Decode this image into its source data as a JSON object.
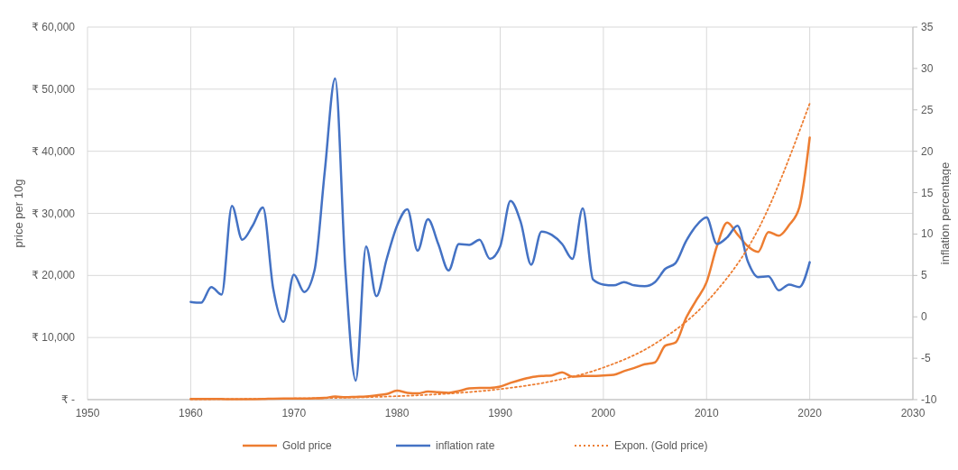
{
  "chart_data": {
    "type": "line",
    "ylabel": "price per 10g",
    "y2label": "inflation percentage",
    "x": [
      1960,
      1961,
      1962,
      1963,
      1964,
      1965,
      1966,
      1967,
      1968,
      1969,
      1970,
      1971,
      1972,
      1973,
      1974,
      1975,
      1976,
      1977,
      1978,
      1979,
      1980,
      1981,
      1982,
      1983,
      1984,
      1985,
      1986,
      1987,
      1988,
      1989,
      1990,
      1991,
      1992,
      1993,
      1994,
      1995,
      1996,
      1997,
      1998,
      1999,
      2000,
      2001,
      2002,
      2003,
      2004,
      2005,
      2006,
      2007,
      2008,
      2009,
      2010,
      2011,
      2012,
      2013,
      2014,
      2015,
      2016,
      2017,
      2018,
      2019,
      2020
    ],
    "series": [
      {
        "name": "Gold price",
        "color": "#ed7d31",
        "values": [
          110,
          120,
          120,
          100,
          60,
          70,
          80,
          100,
          160,
          180,
          180,
          190,
          200,
          280,
          500,
          400,
          450,
          500,
          700,
          900,
          1450,
          1100,
          1000,
          1300,
          1200,
          1100,
          1400,
          1800,
          1900,
          1900,
          2100,
          2700,
          3200,
          3600,
          3800,
          3900,
          4400,
          3700,
          3800,
          3800,
          3900,
          4000,
          4600,
          5100,
          5700,
          6000,
          8700,
          9200,
          13100,
          16000,
          18900,
          24700,
          28500,
          26600,
          24700,
          23800,
          27000,
          26400,
          28100,
          31000,
          42200
        ]
      },
      {
        "name": "inflation rate",
        "color": "#4472c4",
        "axis": "y2",
        "values": [
          1.8,
          1.7,
          3.6,
          2.7,
          13.4,
          9.3,
          11.0,
          13.2,
          3.4,
          -0.6,
          5.1,
          3.0,
          5.6,
          17.6,
          28.8,
          5.7,
          -7.7,
          8.5,
          2.5,
          7.0,
          11.0,
          13.0,
          8.0,
          11.8,
          8.8,
          5.6,
          8.8,
          8.7,
          9.3,
          7.0,
          8.5,
          14.0,
          11.4,
          6.3,
          10.3,
          9.9,
          8.8,
          7.0,
          13.1,
          4.5,
          3.9,
          3.8,
          4.2,
          3.8,
          3.7,
          4.2,
          5.8,
          6.5,
          9.1,
          11.0,
          12.0,
          8.8,
          9.6,
          11.0,
          6.7,
          4.8,
          4.9,
          3.2,
          3.9,
          3.6,
          6.6
        ]
      },
      {
        "name": "Expon. (Gold price)",
        "color": "#ed7d31",
        "type": "line",
        "line_style": "dotted",
        "x": [
          1960,
          1965,
          1970,
          1975,
          1980,
          1985,
          1990,
          1995,
          2000,
          2005,
          2010,
          2015,
          2020
        ],
        "values": [
          60,
          105,
          180,
          320,
          560,
          970,
          1700,
          2960,
          5160,
          9000,
          15700,
          27400,
          47700
        ]
      }
    ],
    "xlim": [
      1950,
      2030
    ],
    "xticks": [
      1950,
      1960,
      1970,
      1980,
      1990,
      2000,
      2010,
      2020,
      2030
    ],
    "ylim": [
      0,
      60000
    ],
    "yticks": [
      {
        "value": 0,
        "label": "₹ -"
      },
      {
        "value": 10000,
        "label": "₹ 10,000"
      },
      {
        "value": 20000,
        "label": "₹ 20,000"
      },
      {
        "value": 30000,
        "label": "₹ 30,000"
      },
      {
        "value": 40000,
        "label": "₹ 40,000"
      },
      {
        "value": 50000,
        "label": "₹ 50,000"
      },
      {
        "value": 60000,
        "label": "₹ 60,000"
      }
    ],
    "y2lim": [
      -10,
      35
    ],
    "y2ticks": [
      -10,
      -5,
      0,
      5,
      10,
      15,
      20,
      25,
      30,
      35
    ],
    "grid": true,
    "legend": "bottom",
    "line_style": "solid"
  }
}
